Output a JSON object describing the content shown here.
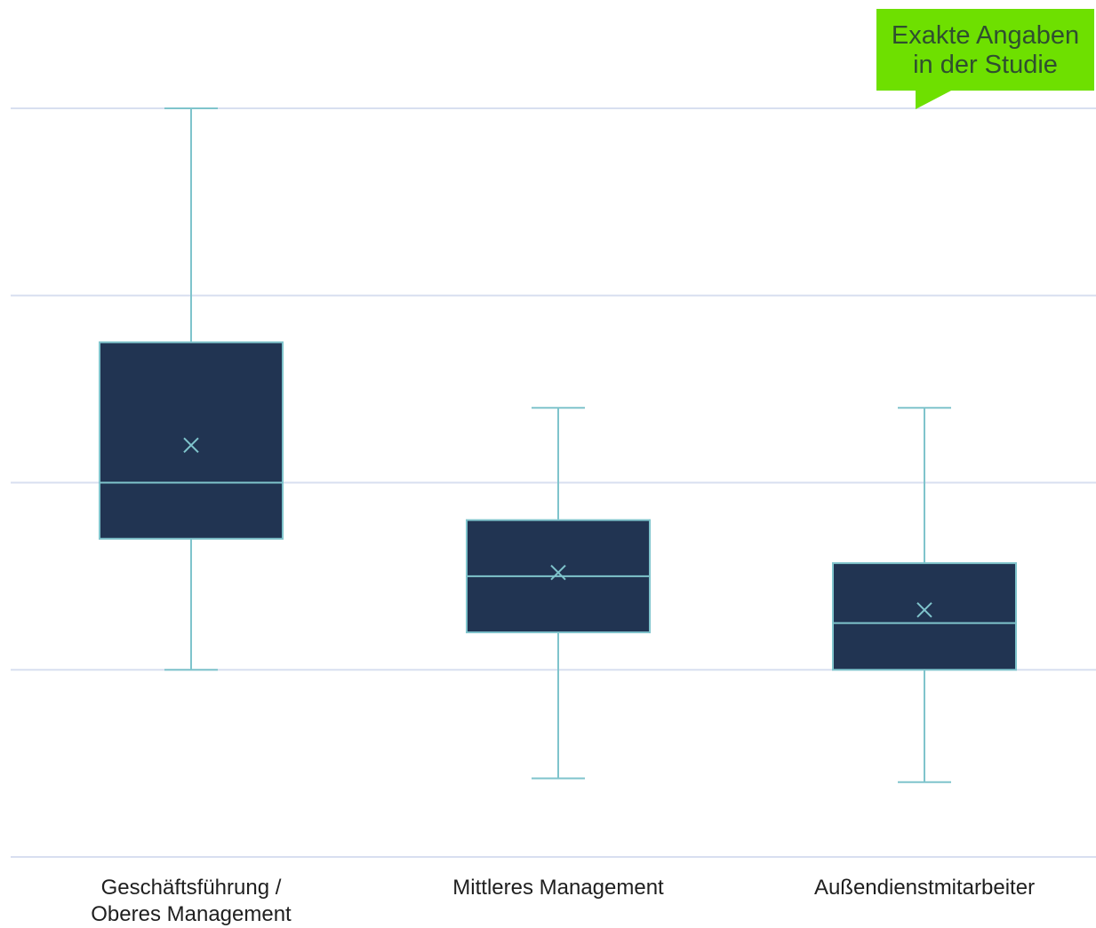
{
  "callout": {
    "line1": "Exakte Angaben",
    "line2": "in der Studie"
  },
  "chart_data": {
    "type": "boxplot",
    "title": "",
    "xlabel": "",
    "ylabel": "",
    "ylim": [
      0,
      4
    ],
    "grid": true,
    "gridlines": [
      0,
      1,
      2,
      3,
      4
    ],
    "categories": [
      "Geschäftsführung / Oberes Management",
      "Mittleres Management",
      "Außendienstmitarbeiter"
    ],
    "category_label_lines": [
      [
        "Geschäftsführung /",
        "Oberes Management"
      ],
      [
        "Mittleres Management"
      ],
      [
        "Außendienstmitarbeiter"
      ]
    ],
    "boxes": [
      {
        "min": 1.0,
        "q1": 1.7,
        "median": 2.0,
        "q3": 2.75,
        "max": 4.0,
        "mean": 2.2
      },
      {
        "min": 0.42,
        "q1": 1.2,
        "median": 1.5,
        "q3": 1.8,
        "max": 2.4,
        "mean": 1.52
      },
      {
        "min": 0.4,
        "q1": 1.0,
        "median": 1.25,
        "q3": 1.57,
        "max": 2.4,
        "mean": 1.32
      }
    ],
    "colors": {
      "box_fill": "#213452",
      "accent": "#7fc4cc",
      "grid": "#d8dff0",
      "callout": "#6ee000"
    }
  }
}
